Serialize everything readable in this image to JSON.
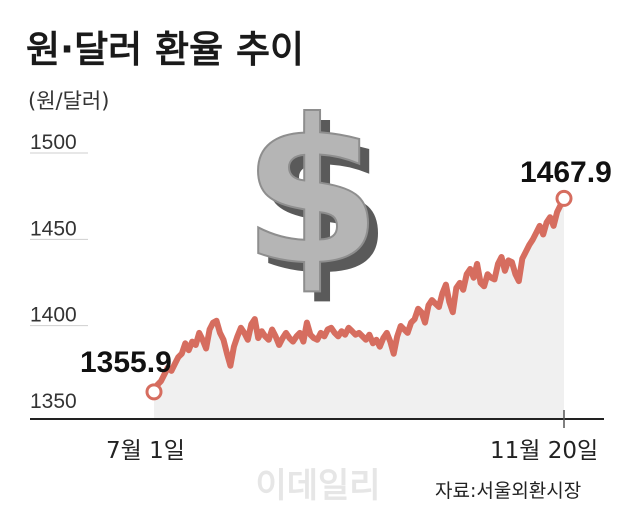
{
  "chart_data": {
    "type": "line",
    "title": "원·달러 환율 추이",
    "unit_label": "(원/달러)",
    "source": "자료:서울외환시장",
    "watermark": "이데일리",
    "ylim": [
      1340,
      1510
    ],
    "yticks": [
      "1500",
      "1450",
      "1400",
      "1350"
    ],
    "ytick_values": [
      1500,
      1450,
      1400,
      1350
    ],
    "xtick_labels": [
      "7월 1일",
      "11월 20일"
    ],
    "start_label": "1355.9",
    "end_label": "1467.9",
    "line_color": "#d66d5f",
    "area_color": "#f0f0f0",
    "series": [
      {
        "values": [
          1355.9,
          1360,
          1362,
          1366,
          1370,
          1368,
          1372,
          1376,
          1378,
          1384,
          1380,
          1385,
          1383,
          1390,
          1386,
          1381,
          1392,
          1396,
          1397,
          1390,
          1386,
          1378,
          1371,
          1382,
          1388,
          1393,
          1390,
          1386,
          1395,
          1398,
          1387,
          1391,
          1388,
          1386,
          1392,
          1388,
          1383,
          1387,
          1390,
          1387,
          1385,
          1388,
          1390,
          1385,
          1396,
          1389,
          1387,
          1386,
          1390,
          1388,
          1392,
          1393,
          1390,
          1388,
          1391,
          1389,
          1393,
          1391,
          1389,
          1390,
          1388,
          1386,
          1389,
          1384,
          1386,
          1382,
          1387,
          1390,
          1385,
          1378,
          1388,
          1394,
          1392,
          1390,
          1396,
          1398,
          1404,
          1402,
          1396,
          1406,
          1409,
          1407,
          1405,
          1413,
          1418,
          1408,
          1402,
          1416,
          1419,
          1415,
          1424,
          1427,
          1422,
          1430,
          1419,
          1417,
          1424,
          1422,
          1421,
          1430,
          1434,
          1426,
          1432,
          1431,
          1424,
          1420,
          1433,
          1437,
          1441,
          1444,
          1448,
          1452,
          1447,
          1454,
          1457,
          1452,
          1460,
          1464,
          1467.9
        ]
      }
    ]
  }
}
